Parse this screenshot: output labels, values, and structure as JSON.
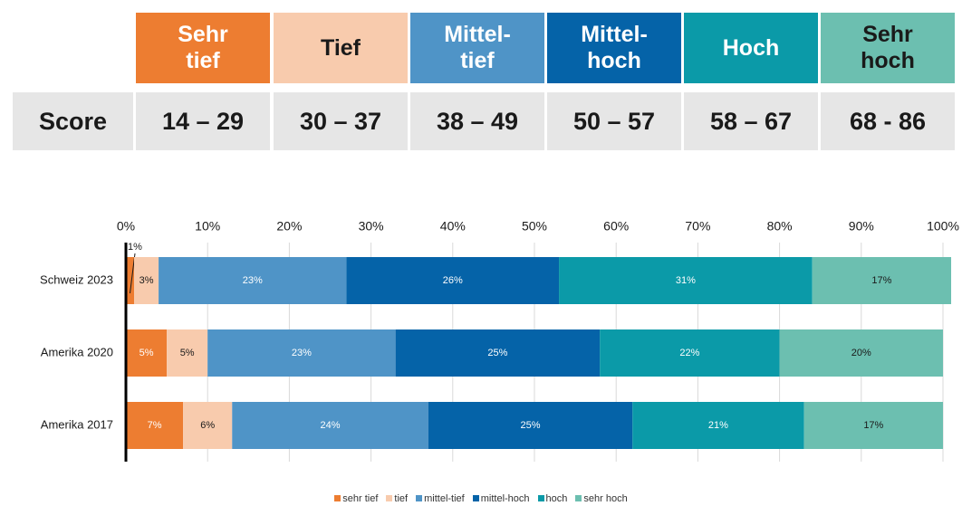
{
  "table": {
    "header": [
      "Sehr\ntief",
      "Tief",
      "Mittel-\ntief",
      "Mittel-\nhoch",
      "Hoch",
      "Sehr\nhoch"
    ],
    "row_label": "Score",
    "scores": [
      "14 – 29",
      "30 – 37",
      "38 – 49",
      "50 – 57",
      "58 – 67",
      "68 - 86"
    ]
  },
  "chart_data": {
    "type": "stacked_barh",
    "categories": [
      "Schweiz 2023",
      "Amerika 2020",
      "Amerika 2017"
    ],
    "series": [
      {
        "name": "sehr tief",
        "color": "#ed7d31",
        "values": [
          1,
          5,
          7
        ],
        "value_labels": [
          "1%",
          "5%",
          "7%"
        ]
      },
      {
        "name": "tief",
        "color": "#f8cbad",
        "values": [
          3,
          5,
          6
        ],
        "value_labels": [
          "3%",
          "5%",
          "6%"
        ]
      },
      {
        "name": "mittel-tief",
        "color": "#4f94c7",
        "values": [
          23,
          23,
          24
        ],
        "value_labels": [
          "23%",
          "23%",
          "24%"
        ]
      },
      {
        "name": "mittel-hoch",
        "color": "#0563a8",
        "values": [
          26,
          25,
          25
        ],
        "value_labels": [
          "26%",
          "25%",
          "25%"
        ]
      },
      {
        "name": "hoch",
        "color": "#0b9aa8",
        "values": [
          31,
          22,
          21
        ],
        "value_labels": [
          "31%",
          "22%",
          "21%"
        ]
      },
      {
        "name": "sehr hoch",
        "color": "#6cbfb0",
        "values": [
          17,
          20,
          17
        ],
        "value_labels": [
          "17%",
          "20%",
          "17%"
        ]
      }
    ],
    "xlim": [
      0,
      100
    ],
    "xticks": [
      {
        "value": 0,
        "label": "0%"
      },
      {
        "value": 10,
        "label": "10%"
      },
      {
        "value": 20,
        "label": "20%"
      },
      {
        "value": 30,
        "label": "30%"
      },
      {
        "value": 40,
        "label": "40%"
      },
      {
        "value": 50,
        "label": "50%"
      },
      {
        "value": 60,
        "label": "60%"
      },
      {
        "value": 70,
        "label": "70%"
      },
      {
        "value": 80,
        "label": "80%"
      },
      {
        "value": 90,
        "label": "90%"
      },
      {
        "value": 100,
        "label": "100%"
      }
    ],
    "grid": true,
    "legend": "bottom"
  }
}
